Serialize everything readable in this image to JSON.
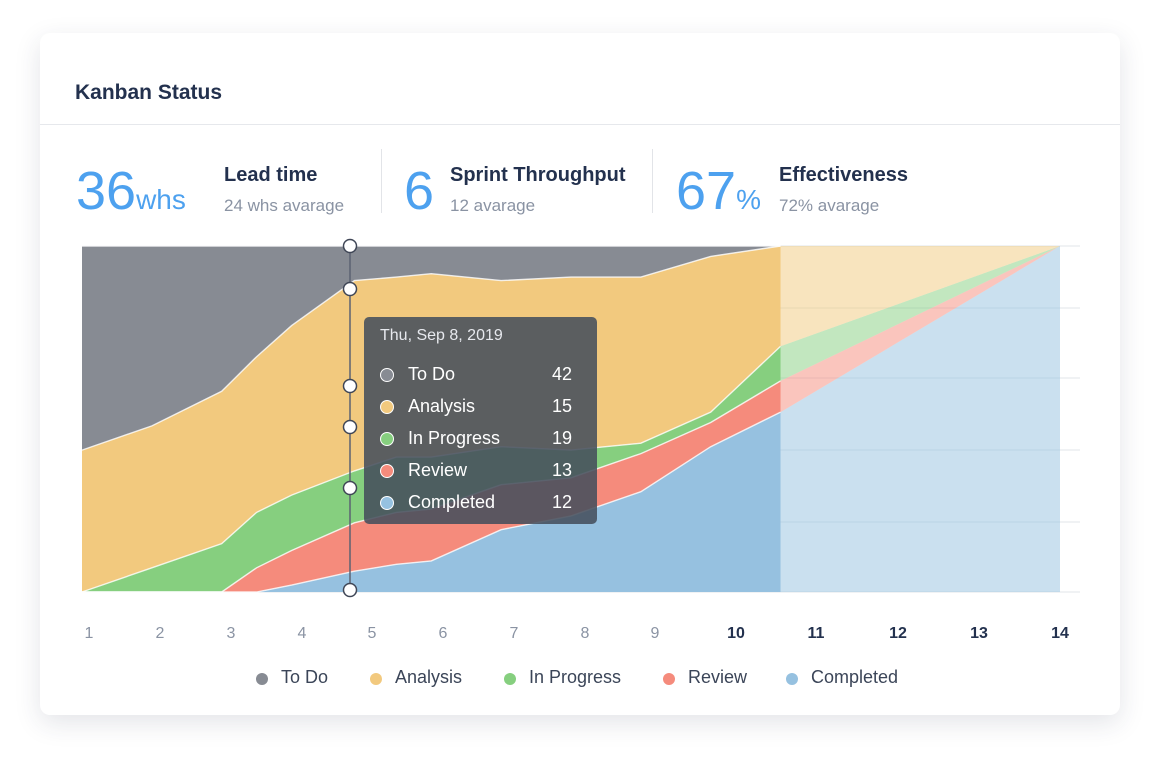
{
  "card": {
    "title": "Kanban Status"
  },
  "kpis": [
    {
      "value": "36",
      "unit": "whs",
      "label": "Lead time",
      "sub": "24 whs avarage"
    },
    {
      "value": "6",
      "unit": "",
      "label": "Sprint Throughput",
      "sub": "12 avarage"
    },
    {
      "value": "67",
      "unit": "%",
      "label": "Effectiveness",
      "sub": "72% avarage"
    }
  ],
  "colors": {
    "todo": "#878b93",
    "analysis": "#f2c97e",
    "inprogress": "#86cf7f",
    "review": "#f58b7c",
    "completed": "#96c1e0",
    "accent": "#4da1ef"
  },
  "tooltip": {
    "date": "Thu, Sep 8, 2019",
    "rows": [
      {
        "name": "To Do",
        "value": "42"
      },
      {
        "name": "Analysis",
        "value": "15"
      },
      {
        "name": "In Progress",
        "value": "19"
      },
      {
        "name": "Review",
        "value": "13"
      },
      {
        "name": "Completed",
        "value": "12"
      }
    ]
  },
  "chart_data": {
    "type": "area",
    "stacked": true,
    "title": "",
    "xlabel": "",
    "ylabel": "",
    "x": [
      0.0,
      1.0,
      2.0,
      2.5,
      3.0,
      3.9,
      4.5,
      5.0,
      6.0,
      7.0,
      8.0,
      9.0,
      10.0,
      14.0
    ],
    "ylim": [
      0,
      100
    ],
    "x_ticks": [
      "1",
      "2",
      "3",
      "4",
      "5",
      "6",
      "7",
      "8",
      "9",
      "10",
      "11",
      "12",
      "13",
      "14"
    ],
    "highlighted_ticks": [
      "10",
      "11",
      "12",
      "13",
      "14"
    ],
    "forecast_from": 10,
    "grid": true,
    "legend_position": "bottom",
    "series": [
      {
        "name": "Completed",
        "values": [
          0,
          0,
          0,
          0,
          2,
          6,
          8,
          9,
          18,
          22,
          29,
          42,
          52,
          100
        ]
      },
      {
        "name": "Review",
        "values": [
          0,
          0,
          0,
          7,
          10,
          14,
          15,
          15,
          13,
          11,
          11,
          7,
          9,
          0
        ]
      },
      {
        "name": "In Progress",
        "values": [
          0,
          7,
          14,
          16,
          16,
          15,
          16,
          15,
          11,
          8,
          3,
          3,
          10,
          0
        ]
      },
      {
        "name": "Analysis",
        "values": [
          41,
          41,
          44,
          45,
          49,
          55,
          52,
          53,
          48,
          50,
          48,
          45,
          29,
          0
        ]
      },
      {
        "name": "To Do",
        "values": [
          59,
          52,
          42,
          32,
          23,
          10,
          9,
          8,
          10,
          9,
          9,
          3,
          0,
          0
        ]
      }
    ]
  }
}
